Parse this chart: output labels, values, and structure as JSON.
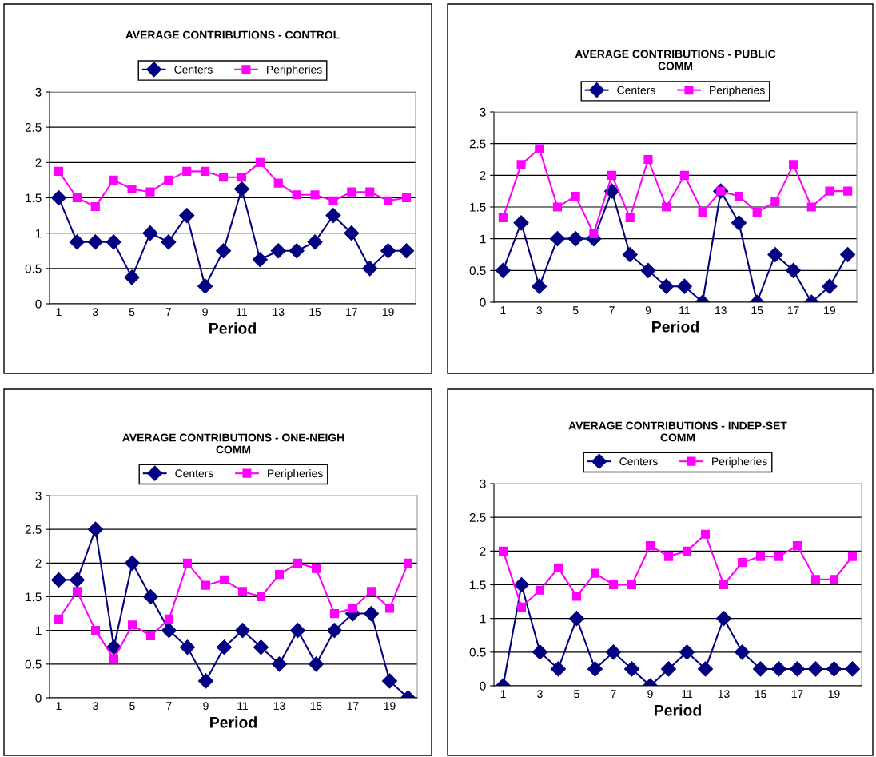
{
  "chart_data": [
    {
      "type": "line",
      "title": "AVERAGE CONTRIBUTIONS - CONTROL",
      "xlabel": "Period",
      "categories": [
        "1",
        null,
        "3",
        null,
        "5",
        null,
        "7",
        null,
        "9",
        null,
        "11",
        null,
        "13",
        null,
        "15",
        null,
        "17",
        null,
        "19",
        null
      ],
      "ylim": [
        0,
        3
      ],
      "yticks": [
        0,
        0.5,
        1,
        1.5,
        2,
        2.5,
        3
      ],
      "grid": "y",
      "legend": "top",
      "series": [
        {
          "name": "Centers",
          "color": "#000080",
          "marker": "diamond",
          "values": [
            1.5,
            0.875,
            0.875,
            0.875,
            0.375,
            1,
            0.875,
            1.25,
            0.25,
            0.75,
            1.625,
            0.625,
            0.75,
            0.75,
            0.875,
            1.25,
            1,
            0.5,
            0.75,
            0.75
          ]
        },
        {
          "name": "Peripheries",
          "color": "#ff00ff",
          "marker": "square",
          "values": [
            1.875,
            1.5,
            1.375,
            1.75,
            1.625,
            1.583,
            1.75,
            1.875,
            1.875,
            1.792,
            1.792,
            2,
            1.708,
            1.542,
            1.542,
            1.458,
            1.583,
            1.583,
            1.458,
            1.5
          ]
        }
      ]
    },
    {
      "type": "line",
      "title": "AVERAGE CONTRIBUTIONS - PUBLIC\nCOMM",
      "xlabel": "Period",
      "categories": [
        "1",
        null,
        "3",
        null,
        "5",
        null,
        "7",
        null,
        "9",
        null,
        "11",
        null,
        "13",
        null,
        "15",
        null,
        "17",
        null,
        "19",
        null
      ],
      "ylim": [
        0,
        3
      ],
      "yticks": [
        0,
        0.5,
        1,
        1.5,
        2,
        2.5,
        3
      ],
      "grid": "y",
      "legend": "top",
      "series": [
        {
          "name": "Centers",
          "color": "#000080",
          "marker": "diamond",
          "values": [
            0.5,
            1.25,
            0.25,
            1,
            1,
            1,
            1.75,
            0.75,
            0.5,
            0.25,
            0.25,
            0,
            1.75,
            1.25,
            0,
            0.75,
            0.5,
            0,
            0.25,
            0.75
          ]
        },
        {
          "name": "Peripheries",
          "color": "#ff00ff",
          "marker": "square",
          "values": [
            1.33,
            2.17,
            2.42,
            1.5,
            1.67,
            1.08,
            2,
            1.33,
            2.25,
            1.5,
            2,
            1.42,
            1.75,
            1.67,
            1.42,
            1.58,
            2.17,
            1.5,
            1.75,
            1.75
          ]
        }
      ]
    },
    {
      "type": "line",
      "title": "AVERAGE CONTRIBUTIONS - ONE-NEIGH\nCOMM",
      "xlabel": "Period",
      "categories": [
        "1",
        null,
        "3",
        null,
        "5",
        null,
        "7",
        null,
        "9",
        null,
        "11",
        null,
        "13",
        null,
        "15",
        null,
        "17",
        null,
        "19",
        null
      ],
      "ylim": [
        0,
        3
      ],
      "yticks": [
        0,
        0.5,
        1,
        1.5,
        2,
        2.5,
        3
      ],
      "grid": "y",
      "legend": "top",
      "series": [
        {
          "name": "Centers",
          "color": "#000080",
          "marker": "diamond",
          "values": [
            1.75,
            1.75,
            2.5,
            0.75,
            2,
            1.5,
            1,
            0.75,
            0.25,
            0.75,
            1,
            0.75,
            0.5,
            1,
            0.5,
            1,
            1.25,
            1.25,
            0.25,
            0
          ]
        },
        {
          "name": "Peripheries",
          "color": "#ff00ff",
          "marker": "square",
          "values": [
            1.17,
            1.58,
            1,
            0.58,
            1.08,
            0.92,
            1.17,
            2,
            1.67,
            1.75,
            1.58,
            1.5,
            1.83,
            2,
            1.92,
            1.25,
            1.33,
            1.58,
            1.33,
            2
          ]
        }
      ]
    },
    {
      "type": "line",
      "title": "AVERAGE CONTRIBUTIONS - INDEP-SET\nCOMM",
      "xlabel": "Period",
      "categories": [
        "1",
        null,
        "3",
        null,
        "5",
        null,
        "7",
        null,
        "9",
        null,
        "11",
        null,
        "13",
        null,
        "15",
        null,
        "17",
        null,
        "19",
        null
      ],
      "ylim": [
        0,
        3
      ],
      "yticks": [
        0,
        0.5,
        1,
        1.5,
        2,
        2.5,
        3
      ],
      "grid": "y",
      "legend": "top",
      "series": [
        {
          "name": "Centers",
          "color": "#000080",
          "marker": "diamond",
          "values": [
            0,
            1.5,
            0.5,
            0.25,
            1,
            0.25,
            0.5,
            0.25,
            0,
            0.25,
            0.5,
            0.25,
            1,
            0.5,
            0.25,
            0.25,
            0.25,
            0.25,
            0.25,
            0.25
          ]
        },
        {
          "name": "Peripheries",
          "color": "#ff00ff",
          "marker": "square",
          "values": [
            2,
            1.17,
            1.42,
            1.75,
            1.33,
            1.67,
            1.5,
            1.5,
            2.08,
            1.92,
            2,
            2.25,
            1.5,
            1.83,
            1.92,
            1.92,
            2.08,
            1.58,
            1.58,
            1.92
          ]
        }
      ]
    }
  ]
}
